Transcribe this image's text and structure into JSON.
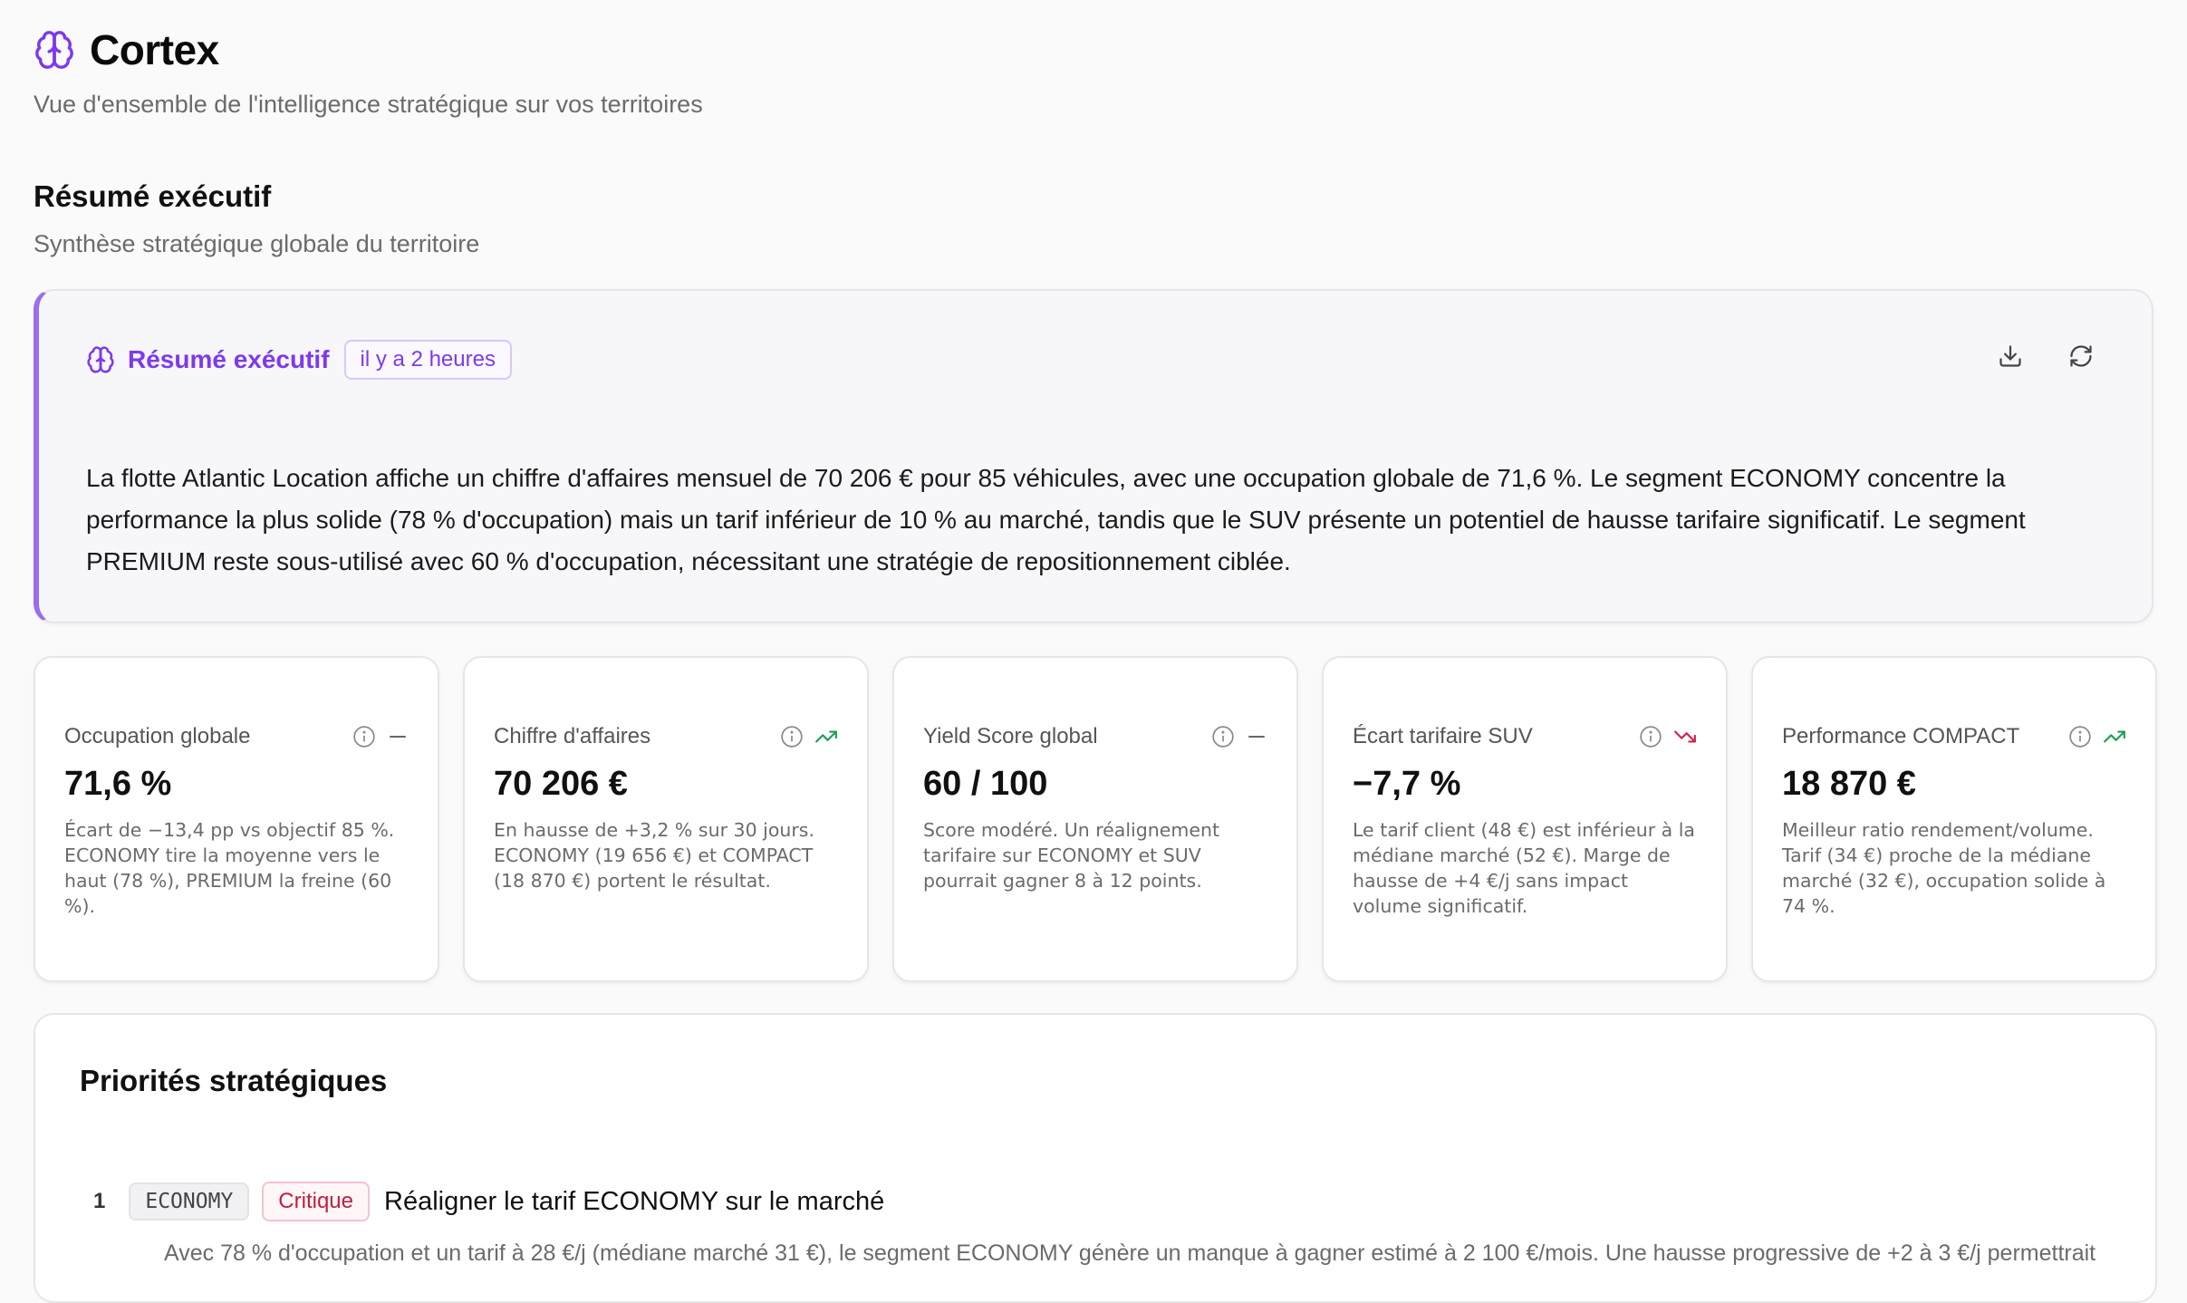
{
  "app": {
    "title": "Cortex",
    "subtitle": "Vue d'ensemble de l'intelligence stratégique sur vos territoires"
  },
  "section": {
    "title": "Résumé exécutif",
    "subtitle": "Synthèse stratégique globale du territoire"
  },
  "summary_card": {
    "label": "Résumé exécutif",
    "time_badge": "il y a 2 heures",
    "text": "La flotte Atlantic Location affiche un chiffre d'affaires mensuel de 70 206 € pour 85 véhicules, avec une occupation globale de 71,6 %. Le segment ECONOMY concentre la performance la plus solide (78 % d'occupation) mais un tarif inférieur de 10 % au marché, tandis que le SUV présente un potentiel de hausse tarifaire significatif. Le segment PREMIUM reste sous-utilisé avec 60 % d'occupation, nécessitant une stratégie de repositionnement ciblée.",
    "actions": [
      "download-icon",
      "refresh-icon"
    ]
  },
  "kpis": [
    {
      "label": "Occupation globale",
      "value": "71,6 %",
      "trend": "flat",
      "description": "Écart de −13,4 pp vs objectif 85 %. ECONOMY tire la moyenne vers le haut (78 %), PREMIUM la freine (60 %)."
    },
    {
      "label": "Chiffre d'affaires",
      "value": "70 206 €",
      "trend": "up",
      "description": "En hausse de +3,2 % sur 30 jours. ECONOMY (19 656 €) et COMPACT (18 870 €) portent le résultat."
    },
    {
      "label": "Yield Score global",
      "value": "60 / 100",
      "trend": "flat",
      "description": "Score modéré. Un réalignement tarifaire sur ECONOMY et SUV pourrait gagner 8 à 12 points."
    },
    {
      "label": "Écart tarifaire SUV",
      "value": "−7,7 %",
      "trend": "down",
      "description": "Le tarif client (48 €) est inférieur à la médiane marché (52 €). Marge de hausse de +4 €/j sans impact volume significatif."
    },
    {
      "label": "Performance COMPACT",
      "value": "18 870 €",
      "trend": "up",
      "description": "Meilleur ratio rendement/volume. Tarif (34 €) proche de la médiane marché (32 €), occupation solide à 74 %."
    }
  ],
  "priorities": {
    "title": "Priorités stratégiques",
    "items": [
      {
        "number": "1",
        "segment": "ECONOMY",
        "severity": "Critique",
        "title": "Réaligner le tarif ECONOMY sur le marché",
        "description": "Avec 78 % d'occupation et un tarif à 28 €/j (médiane marché 31 €), le segment ECONOMY génère un manque à gagner estimé à 2 100 €/mois. Une hausse progressive de +2 à 3 €/j permettrait"
      }
    ]
  },
  "colors": {
    "accent": "#7c3aed",
    "accent_border": "#9b6cf0",
    "trend_up": "#1f9d55",
    "trend_down": "#d0234a",
    "critical": "#c21d3c"
  }
}
